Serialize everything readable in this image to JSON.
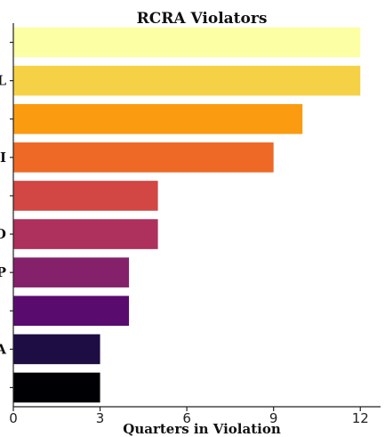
{
  "chart_data": {
    "type": "bar",
    "orientation": "horizontal",
    "title": "RCRA Violators",
    "xlabel": "Quarters in Violation",
    "ylabel": "",
    "xlim": [
      0,
      12.7
    ],
    "xticks": [
      "0",
      "3",
      "6",
      "9",
      "12"
    ],
    "grid": false,
    "categories": [
      "",
      "L",
      "",
      "I",
      "",
      "O",
      "P",
      "",
      "A",
      ""
    ],
    "values": [
      12,
      12,
      10,
      9,
      5,
      5,
      4,
      4,
      3,
      3
    ],
    "colors": [
      "#fcffa4",
      "#f5d245",
      "#fa9b10",
      "#ed6925",
      "#d24644",
      "#ae305c",
      "#85216b",
      "#590c6e",
      "#1e0c45",
      "#000004"
    ]
  }
}
